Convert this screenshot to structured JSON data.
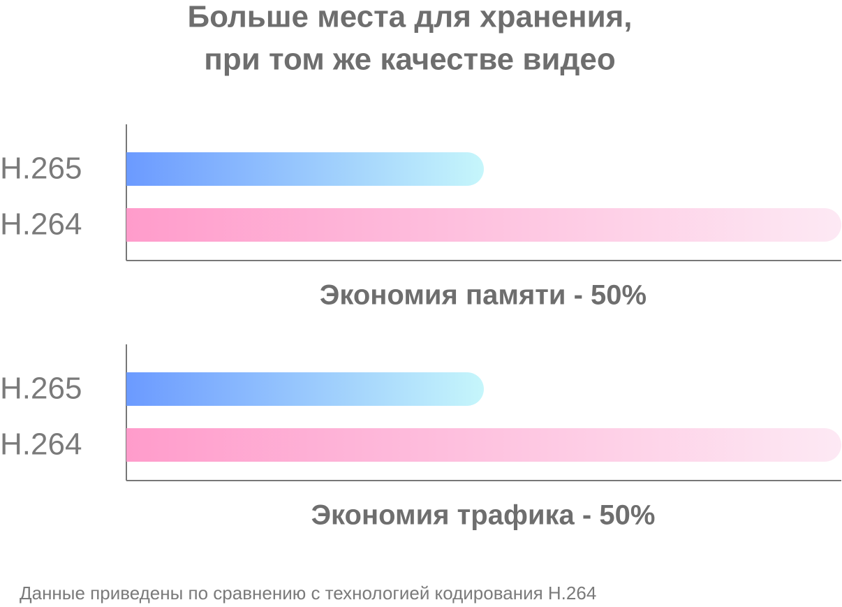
{
  "title": [
    "Больше места для хранения,",
    "при том же качестве видео"
  ],
  "chart_data": [
    {
      "type": "bar",
      "orientation": "horizontal",
      "categories": [
        "H.265",
        "H.264"
      ],
      "values": [
        50,
        100
      ],
      "colors": [
        [
          "#6b9aff",
          "#c6f6fb"
        ],
        [
          "#ff9ccb",
          "#fde9f4"
        ]
      ],
      "xlim": [
        0,
        100
      ],
      "caption": "Экономия памяти - 50%"
    },
    {
      "type": "bar",
      "orientation": "horizontal",
      "categories": [
        "H.265",
        "H.264"
      ],
      "values": [
        50,
        100
      ],
      "colors": [
        [
          "#6b9aff",
          "#c6f6fb"
        ],
        [
          "#ff9ccb",
          "#fde9f4"
        ]
      ],
      "xlim": [
        0,
        100
      ],
      "caption": "Экономия трафика - 50%"
    }
  ],
  "footnote": "Данные приведены по сравнению с технологией кодирования H.264"
}
